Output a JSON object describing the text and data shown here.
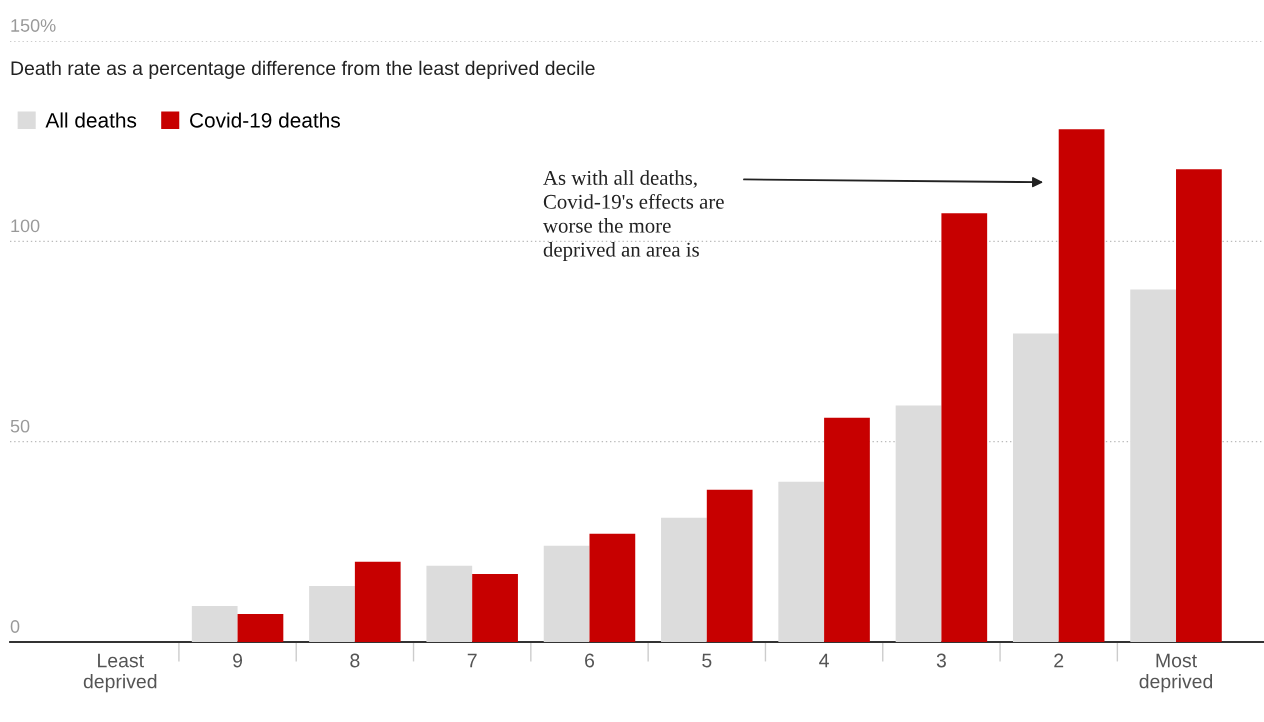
{
  "chart_data": {
    "type": "bar",
    "subtitle": "Death rate as a percentage difference from the least deprived decile",
    "categories": [
      "Least\ndeprived",
      "9",
      "8",
      "7",
      "6",
      "5",
      "4",
      "3",
      "2",
      "Most\ndeprived"
    ],
    "series": [
      {
        "name": "All deaths",
        "color": "#dcdcdc",
        "values": [
          0,
          9,
          14,
          19,
          24,
          31,
          40,
          59,
          77,
          88
        ]
      },
      {
        "name": "Covid-19 deaths",
        "color": "#c70000",
        "values": [
          0,
          7,
          20,
          17,
          27,
          38,
          56,
          107,
          128,
          118
        ]
      }
    ],
    "ylim": [
      0,
      150
    ],
    "yticks": [
      0,
      50,
      100,
      {
        "value": 150,
        "label": "150%"
      }
    ],
    "grid": "y",
    "legend": "top left",
    "annotations": [
      "As with all deaths,\nCovid-19's effects are\nworse the more\ndeprived an area is"
    ]
  }
}
